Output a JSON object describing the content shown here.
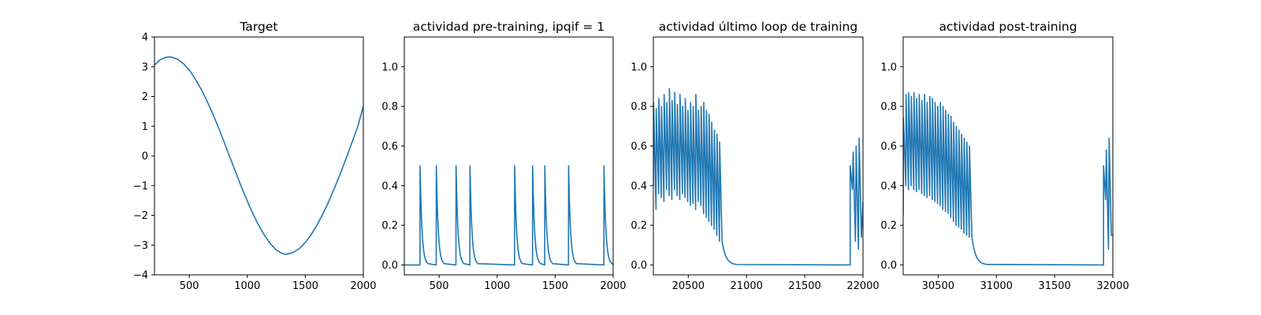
{
  "chart_data": [
    {
      "type": "line",
      "title": "Target",
      "xlim": [
        200,
        2000
      ],
      "ylim": [
        -4,
        4
      ],
      "xticks": [
        500,
        1000,
        1500,
        2000
      ],
      "yticks": [
        -4,
        -3,
        -2,
        -1,
        0,
        1,
        2,
        3,
        4
      ],
      "line_color": "#1f77b4",
      "series": [
        {
          "x": [
            200,
            250,
            300,
            330,
            350,
            400,
            450,
            500,
            550,
            600,
            650,
            700,
            750,
            800,
            850,
            900,
            950,
            1000,
            1050,
            1100,
            1150,
            1200,
            1250,
            1300,
            1330,
            1350,
            1400,
            1450,
            1500,
            1550,
            1600,
            1650,
            1700,
            1750,
            1800,
            1850,
            1900,
            1950,
            2000
          ],
          "values": [
            3.06,
            3.24,
            3.32,
            3.33,
            3.32,
            3.25,
            3.1,
            2.89,
            2.6,
            2.26,
            1.87,
            1.44,
            0.97,
            0.47,
            -0.04,
            -0.55,
            -1.05,
            -1.52,
            -1.96,
            -2.35,
            -2.68,
            -2.96,
            -3.16,
            -3.28,
            -3.31,
            -3.3,
            -3.24,
            -3.11,
            -2.91,
            -2.65,
            -2.33,
            -1.96,
            -1.55,
            -1.09,
            -0.61,
            -0.1,
            0.43,
            0.96,
            1.67
          ]
        }
      ]
    },
    {
      "type": "line",
      "title": "actividad pre-training, ipqif = 1",
      "xlim": [
        200,
        2000
      ],
      "ylim": [
        -0.05,
        1.15
      ],
      "xticks": [
        500,
        1000,
        1500,
        2000
      ],
      "yticks": [
        0.0,
        0.2,
        0.4,
        0.6,
        0.8,
        1.0
      ],
      "line_color": "#1f77b4",
      "baseline": 0.0,
      "events": [
        {
          "t": 335,
          "peak": 0.5
        },
        {
          "t": 475,
          "peak": 0.5
        },
        {
          "t": 645,
          "peak": 0.5
        },
        {
          "t": 765,
          "peak": 0.5
        },
        {
          "t": 1150,
          "peak": 0.5
        },
        {
          "t": 1305,
          "peak": 0.5
        },
        {
          "t": 1410,
          "peak": 0.5
        },
        {
          "t": 1615,
          "peak": 0.5
        },
        {
          "t": 1920,
          "peak": 0.5
        }
      ]
    },
    {
      "type": "line",
      "title": "actividad último loop de training",
      "xlim": [
        20200,
        22000
      ],
      "ylim": [
        -0.05,
        1.15
      ],
      "xticks": [
        20500,
        21000,
        21500,
        22000
      ],
      "yticks": [
        0.0,
        0.2,
        0.4,
        0.6,
        0.8,
        1.0
      ],
      "line_color": "#1f77b4",
      "baseline": 0.0,
      "burst_start": 20200,
      "burst_end": 20790,
      "burst_peaks": [
        0.82,
        0.79,
        0.84,
        0.8,
        0.86,
        0.82,
        0.89,
        0.83,
        0.87,
        0.81,
        0.86,
        0.8,
        0.84,
        0.78,
        0.82,
        0.8,
        0.86,
        0.78,
        0.8,
        0.82,
        0.78,
        0.76,
        0.72,
        0.68,
        0.66,
        0.62
      ],
      "burst_troughs": [
        0.4,
        0.28,
        0.36,
        0.34,
        0.32,
        0.38,
        0.35,
        0.33,
        0.38,
        0.35,
        0.33,
        0.36,
        0.34,
        0.32,
        0.3,
        0.31,
        0.28,
        0.32,
        0.3,
        0.26,
        0.24,
        0.22,
        0.2,
        0.18,
        0.15,
        0.12
      ],
      "decay_end": 20920,
      "tail_start": 21890,
      "tail_peaks": [
        0.5,
        0.57,
        0.6,
        0.64
      ],
      "tail_troughs": [
        0.38,
        0.12,
        0.08,
        0.14,
        0.32
      ]
    },
    {
      "type": "line",
      "title": "actividad post-training",
      "xlim": [
        30200,
        32000
      ],
      "ylim": [
        -0.05,
        1.15
      ],
      "xticks": [
        30500,
        31000,
        31500,
        32000
      ],
      "yticks": [
        0.0,
        0.2,
        0.4,
        0.6,
        0.8,
        1.0
      ],
      "line_color": "#1f77b4",
      "baseline": 0.0,
      "burst_start": 30200,
      "burst_end": 30790,
      "burst_peaks": [
        0.74,
        0.86,
        0.87,
        0.85,
        0.87,
        0.84,
        0.86,
        0.83,
        0.86,
        0.82,
        0.85,
        0.84,
        0.82,
        0.8,
        0.82,
        0.8,
        0.78,
        0.76,
        0.75,
        0.72,
        0.7,
        0.68,
        0.66,
        0.64,
        0.62,
        0.6
      ],
      "burst_troughs": [
        0.25,
        0.4,
        0.38,
        0.4,
        0.38,
        0.37,
        0.38,
        0.36,
        0.35,
        0.34,
        0.35,
        0.33,
        0.32,
        0.31,
        0.3,
        0.28,
        0.27,
        0.26,
        0.24,
        0.22,
        0.2,
        0.19,
        0.18,
        0.16,
        0.15,
        0.14
      ],
      "decay_end": 30920,
      "tail_start": 31920,
      "tail_peaks": [
        0.5,
        0.58,
        0.64
      ],
      "tail_troughs": [
        0.33,
        0.08,
        0.15
      ]
    }
  ]
}
